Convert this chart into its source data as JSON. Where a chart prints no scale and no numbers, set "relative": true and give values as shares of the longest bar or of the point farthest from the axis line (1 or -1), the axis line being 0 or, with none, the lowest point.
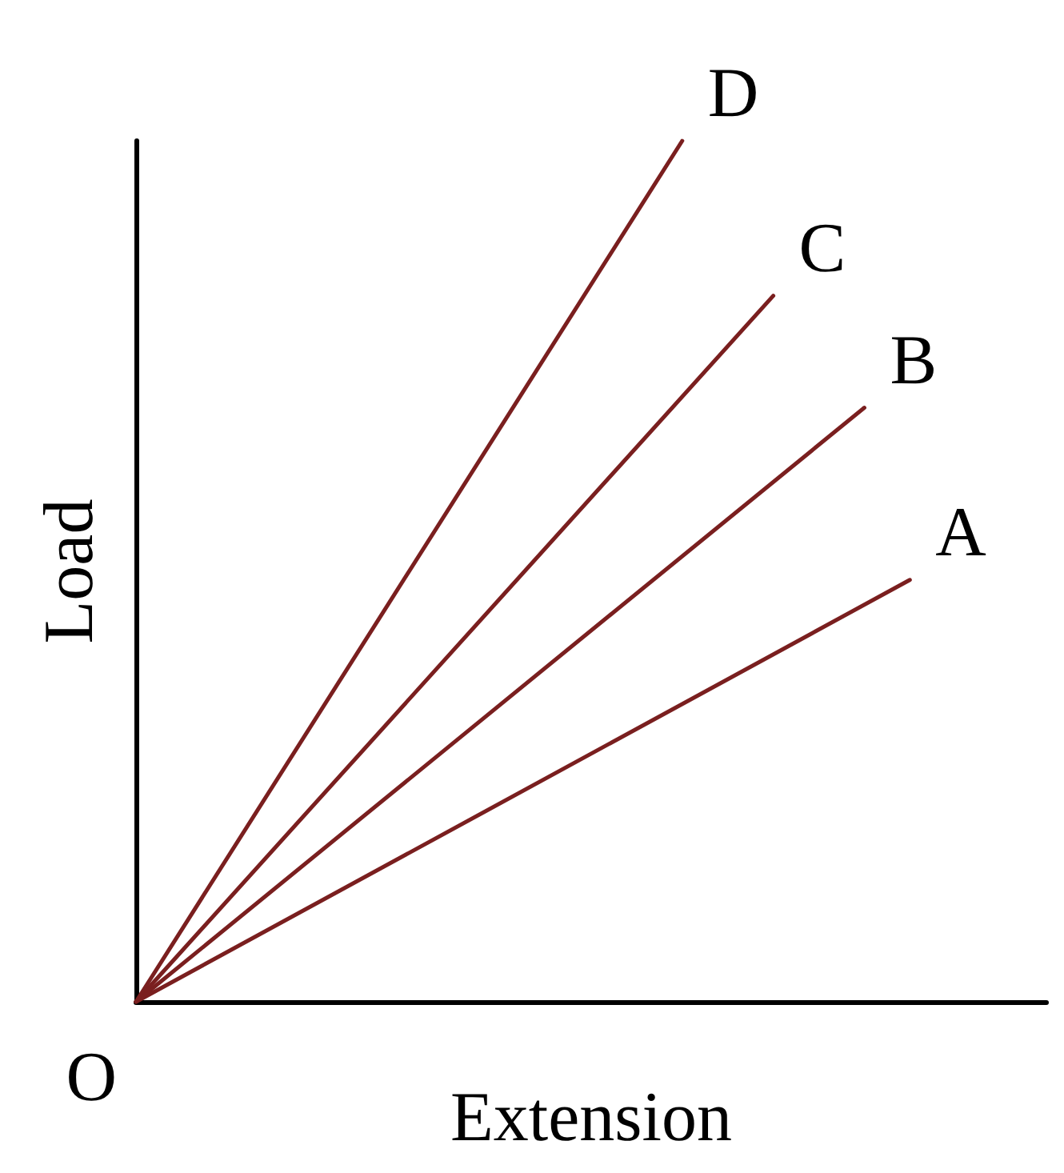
{
  "chart_data": {
    "type": "line",
    "relative": true,
    "xlabel": "Extension",
    "ylabel": "Load",
    "grid": false,
    "legend": false,
    "marker": "none",
    "line_style": "solid",
    "annotations": [
      "O"
    ],
    "categories": [
      null,
      null,
      null,
      null,
      null,
      null,
      null,
      null,
      null,
      null,
      null,
      null,
      null,
      null,
      null,
      null,
      null,
      null,
      null,
      null,
      null
    ],
    "series": [
      {
        "name": "A",
        "color": "#7a1f1f",
        "values": [
          0,
          null,
          null,
          null,
          null,
          null,
          null,
          null,
          null,
          null,
          null,
          null,
          null,
          null,
          null,
          null,
          null,
          0.49,
          null,
          null,
          null
        ]
      },
      {
        "name": "B",
        "color": "#7a1f1f",
        "values": [
          0,
          null,
          null,
          null,
          null,
          null,
          null,
          null,
          null,
          null,
          null,
          null,
          null,
          null,
          null,
          null,
          0.69,
          null,
          null,
          null,
          null
        ]
      },
      {
        "name": "C",
        "color": "#7a1f1f",
        "values": [
          0,
          null,
          null,
          null,
          null,
          null,
          null,
          null,
          null,
          null,
          null,
          null,
          null,
          null,
          0.82,
          null,
          null,
          null,
          null,
          null,
          null
        ]
      },
      {
        "name": "D",
        "color": "#7a1f1f",
        "values": [
          0,
          null,
          null,
          null,
          null,
          null,
          null,
          null,
          null,
          null,
          null,
          null,
          1,
          null,
          null,
          null,
          null,
          null,
          null,
          null,
          null
        ]
      }
    ]
  }
}
